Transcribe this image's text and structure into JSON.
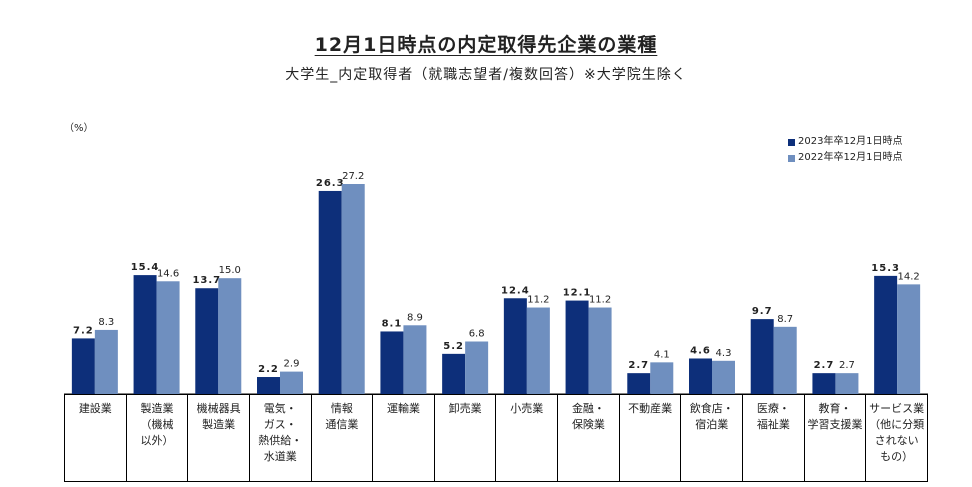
{
  "chart_data": {
    "type": "bar",
    "title": "12月1日時点の内定取得先企業の業種",
    "subtitle": "大学生_内定取得者（就職志望者/複数回答）※大学院生除く",
    "unit_label": "（%）",
    "categories": [
      "建設業",
      "製造業\n（機械\n以外）",
      "機械器具\n製造業",
      "電気・\nガス・\n熱供給・\n水道業",
      "情報\n通信業",
      "運輸業",
      "卸売業",
      "小売業",
      "金融・\n保険業",
      "不動産業",
      "飲食店・\n宿泊業",
      "医療・\n福祉業",
      "教育・\n学習支援業",
      "サービス業\n（他に分類\nされない\nもの）"
    ],
    "series": [
      {
        "name": "2023年卒12月1日時点",
        "color": "#0d2f7a",
        "values": [
          7.2,
          15.4,
          13.7,
          2.2,
          26.3,
          8.1,
          5.2,
          12.4,
          12.1,
          2.7,
          4.6,
          9.7,
          2.7,
          15.3
        ]
      },
      {
        "name": "2022年卒12月1日時点",
        "color": "#6f8fbf",
        "values": [
          8.3,
          14.6,
          15.0,
          2.9,
          27.2,
          8.9,
          6.8,
          11.2,
          11.2,
          4.1,
          4.3,
          8.7,
          2.7,
          14.2
        ]
      }
    ],
    "ylim": [
      0,
      30
    ],
    "grid": false,
    "legend_position": "top-right"
  }
}
